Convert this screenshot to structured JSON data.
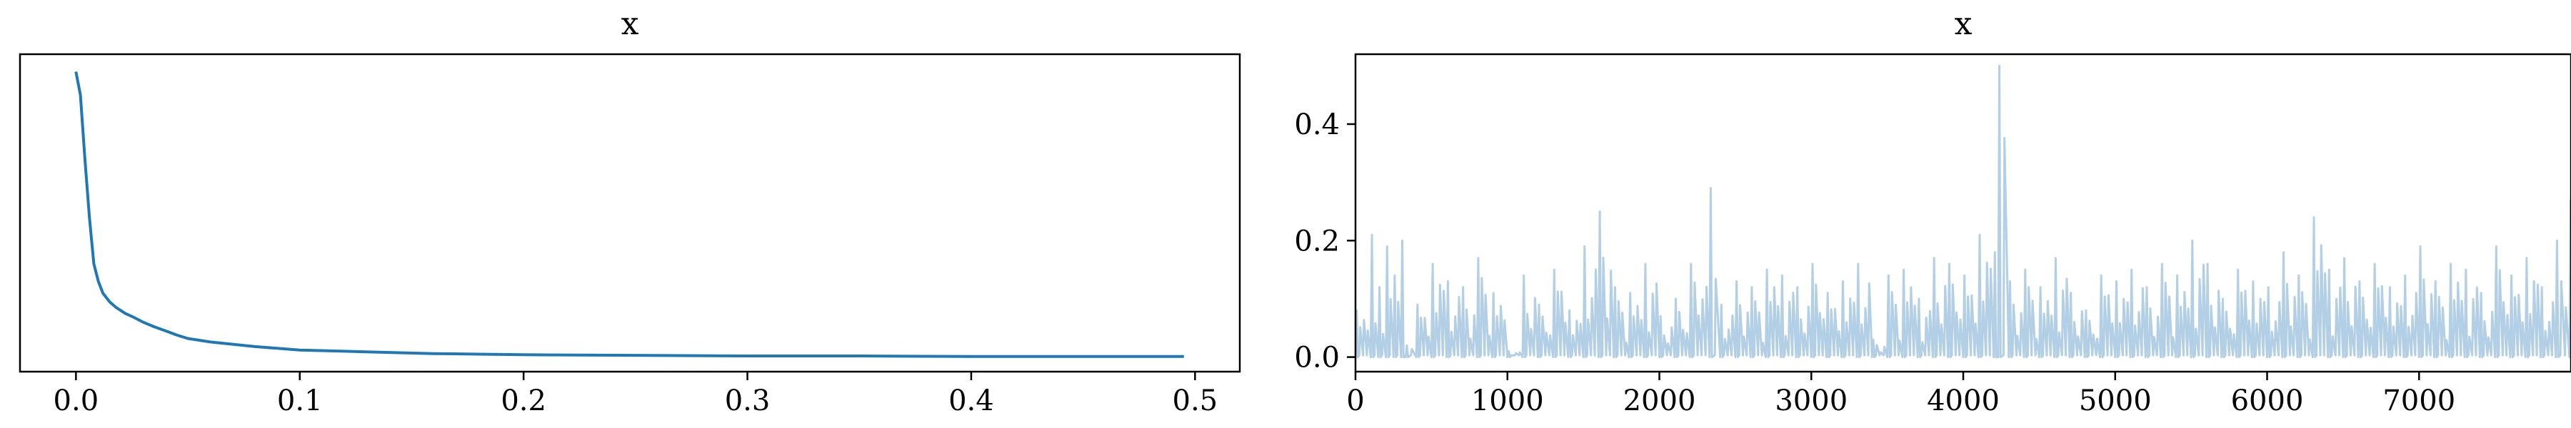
{
  "chart_data": [
    {
      "type": "line",
      "title": "x",
      "xlabel": "",
      "ylabel": "",
      "xlim": [
        -0.025,
        0.52
      ],
      "ylim": [
        -0.025,
        0.52
      ],
      "xticks": [
        0.0,
        0.1,
        0.2,
        0.3,
        0.4,
        0.5
      ],
      "xtick_labels": [
        "0.0",
        "0.1",
        "0.2",
        "0.3",
        "0.4",
        "0.5"
      ],
      "yticks_shown": false,
      "grid": false,
      "color": "#1f77b4",
      "series": [
        {
          "x": [
            0.0,
            0.002,
            0.004,
            0.006,
            0.008,
            0.01,
            0.012,
            0.015,
            0.018,
            0.022,
            0.026,
            0.03,
            0.035,
            0.04,
            0.045,
            0.05,
            0.06,
            0.07,
            0.08,
            0.09,
            0.1,
            0.12,
            0.14,
            0.16,
            0.18,
            0.2,
            0.25,
            0.3,
            0.35,
            0.4,
            0.45,
            0.495
          ],
          "y": [
            0.49,
            0.45,
            0.34,
            0.24,
            0.16,
            0.13,
            0.11,
            0.095,
            0.085,
            0.075,
            0.068,
            0.06,
            0.052,
            0.045,
            0.038,
            0.032,
            0.026,
            0.022,
            0.018,
            0.015,
            0.012,
            0.01,
            0.008,
            0.006,
            0.005,
            0.004,
            0.003,
            0.002,
            0.002,
            0.001,
            0.001,
            0.001
          ]
        }
      ]
    },
    {
      "type": "line",
      "title": "x",
      "xlabel": "",
      "ylabel": "",
      "xlim": [
        0,
        8000
      ],
      "ylim": [
        -0.025,
        0.52
      ],
      "xticks": [
        0,
        1000,
        2000,
        3000,
        4000,
        5000,
        6000,
        7000
      ],
      "xtick_labels": [
        "0",
        "1000",
        "2000",
        "3000",
        "4000",
        "5000",
        "6000",
        "7000"
      ],
      "yticks": [
        0.0,
        0.2,
        0.4
      ],
      "ytick_labels": [
        "0.0",
        "0.2",
        "0.4"
      ],
      "grid": false,
      "color": "#b3cfe5",
      "n_draws": 8000,
      "series": [
        {
          "x": [
            0,
            100,
            150,
            200,
            250,
            300,
            330,
            400,
            500,
            600,
            700,
            800,
            900,
            1000,
            1100,
            1200,
            1300,
            1400,
            1500,
            1600,
            1700,
            1800,
            1900,
            2000,
            2100,
            2200,
            2330,
            2400,
            2500,
            2600,
            2700,
            2800,
            2900,
            3000,
            3100,
            3200,
            3300,
            3400,
            3500,
            3600,
            3700,
            3800,
            3900,
            4000,
            4100,
            4200,
            4230,
            4300,
            4400,
            4500,
            4600,
            4700,
            4800,
            4900,
            5000,
            5100,
            5200,
            5300,
            5400,
            5500,
            5600,
            5700,
            5800,
            5900,
            6000,
            6100,
            6200,
            6300,
            6400,
            6500,
            6600,
            6700,
            6800,
            6900,
            7000,
            7100,
            7200,
            7300,
            7400,
            7500,
            7600,
            7700,
            7800,
            7900,
            7990
          ],
          "y": [
            0.08,
            0.21,
            0.12,
            0.19,
            0.14,
            0.2,
            0.02,
            0.09,
            0.16,
            0.13,
            0.12,
            0.17,
            0.11,
            0.01,
            0.14,
            0.09,
            0.15,
            0.08,
            0.19,
            0.25,
            0.12,
            0.11,
            0.16,
            0.07,
            0.1,
            0.16,
            0.29,
            0.09,
            0.13,
            0.12,
            0.15,
            0.14,
            0.12,
            0.16,
            0.11,
            0.13,
            0.16,
            0.03,
            0.14,
            0.15,
            0.1,
            0.17,
            0.16,
            0.14,
            0.21,
            0.18,
            0.5,
            0.13,
            0.15,
            0.12,
            0.17,
            0.11,
            0.08,
            0.14,
            0.13,
            0.15,
            0.12,
            0.16,
            0.14,
            0.2,
            0.16,
            0.1,
            0.15,
            0.13,
            0.12,
            0.18,
            0.14,
            0.24,
            0.15,
            0.17,
            0.13,
            0.16,
            0.12,
            0.14,
            0.19,
            0.13,
            0.16,
            0.15,
            0.11,
            0.19,
            0.14,
            0.17,
            0.12,
            0.2,
            0.27
          ]
        }
      ]
    }
  ]
}
